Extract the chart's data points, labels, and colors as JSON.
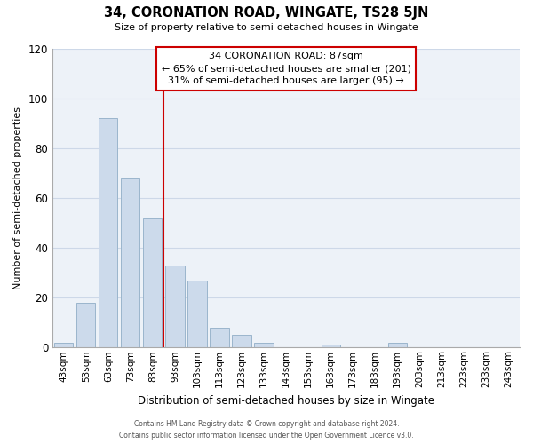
{
  "title": "34, CORONATION ROAD, WINGATE, TS28 5JN",
  "subtitle": "Size of property relative to semi-detached houses in Wingate",
  "xlabel": "Distribution of semi-detached houses by size in Wingate",
  "ylabel": "Number of semi-detached properties",
  "bar_color": "#ccdaeb",
  "bar_edge_color": "#9ab5cc",
  "categories": [
    "43sqm",
    "53sqm",
    "63sqm",
    "73sqm",
    "83sqm",
    "93sqm",
    "103sqm",
    "113sqm",
    "123sqm",
    "133sqm",
    "143sqm",
    "153sqm",
    "163sqm",
    "173sqm",
    "183sqm",
    "193sqm",
    "203sqm",
    "213sqm",
    "223sqm",
    "233sqm",
    "243sqm"
  ],
  "values": [
    2,
    18,
    92,
    68,
    52,
    33,
    27,
    8,
    5,
    2,
    0,
    0,
    1,
    0,
    0,
    2,
    0,
    0,
    0,
    0,
    0
  ],
  "ylim": [
    0,
    120
  ],
  "yticks": [
    0,
    20,
    40,
    60,
    80,
    100,
    120
  ],
  "property_label": "34 CORONATION ROAD: 87sqm",
  "smaller_pct": 65,
  "smaller_n": 201,
  "larger_pct": 31,
  "larger_n": 95,
  "vline_x": 4.5,
  "footer_line1": "Contains HM Land Registry data © Crown copyright and database right 2024.",
  "footer_line2": "Contains public sector information licensed under the Open Government Licence v3.0.",
  "grid_color": "#cdd8e8",
  "vline_color": "#cc0000",
  "box_edge_color": "#cc0000",
  "bg_color": "#edf2f8"
}
